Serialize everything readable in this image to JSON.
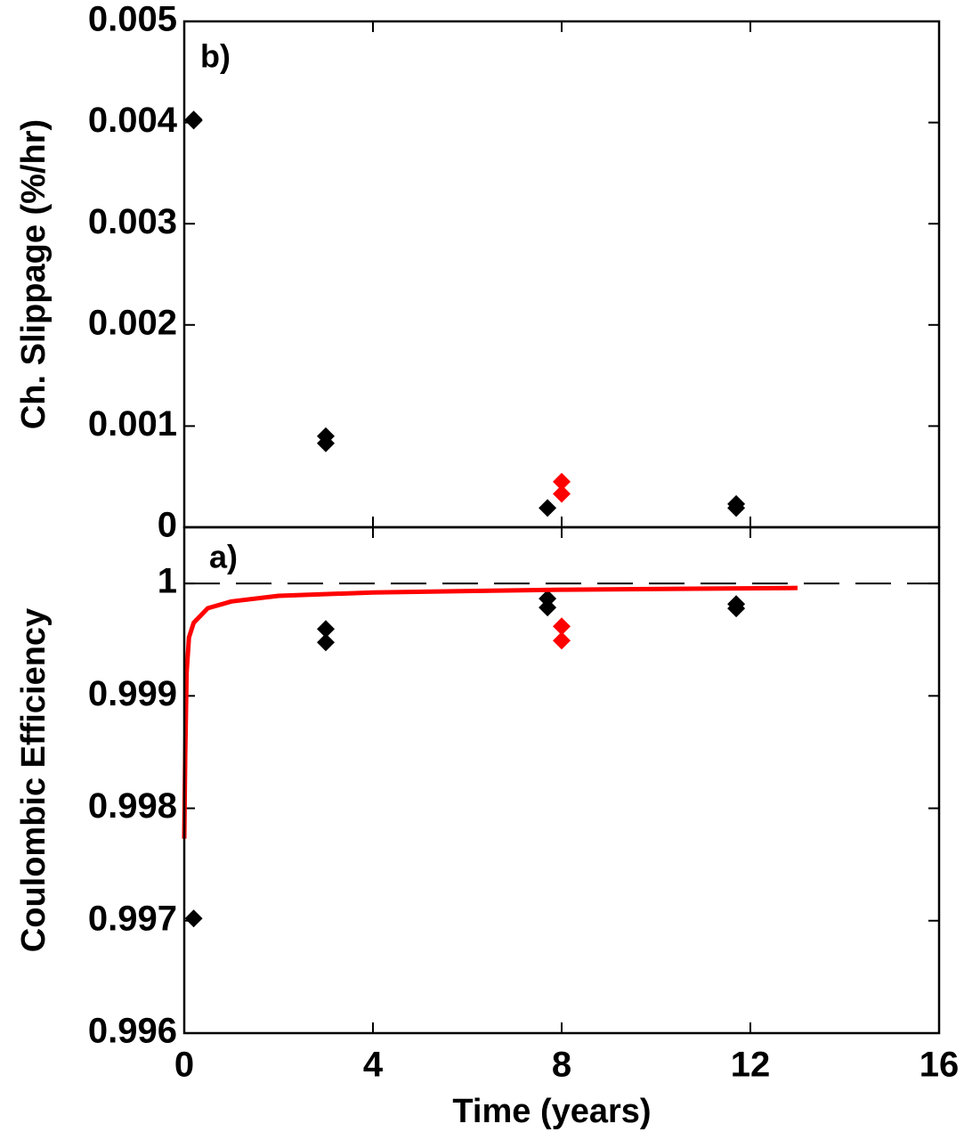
{
  "chart_data": [
    {
      "type": "scatter",
      "panel_label": "b)",
      "y_label": "Ch. Slippage (%/hr)",
      "xlim": [
        0,
        16
      ],
      "ylim": [
        0,
        0.005
      ],
      "yticks": [
        0,
        0.001,
        0.002,
        0.003,
        0.004,
        0.005
      ],
      "series": [
        {
          "color": "#000000",
          "x": [
            0.2,
            0.2,
            3,
            3,
            7.7,
            11.7,
            11.7
          ],
          "values": [
            0.00403,
            0.00402,
            0.0009,
            0.00083,
            0.00019,
            0.00023,
            0.00019
          ]
        },
        {
          "color": "#ff0000",
          "x": [
            8,
            8
          ],
          "values": [
            0.00045,
            0.00033
          ]
        }
      ]
    },
    {
      "type": "scatter",
      "panel_label": "a)",
      "y_label": "Coulombic Efficiency",
      "x_label": "Time (years)",
      "xlim": [
        0,
        16
      ],
      "xticks": [
        0,
        4,
        8,
        12,
        16
      ],
      "ylim": [
        0.996,
        1.0005
      ],
      "yticks": [
        0.996,
        0.997,
        0.998,
        0.999,
        1
      ],
      "reference_line": 1,
      "series": [
        {
          "color": "#000000",
          "x": [
            0.2,
            3,
            3,
            7.7,
            7.7,
            11.7,
            11.7
          ],
          "values": [
            0.99702,
            0.999595,
            0.999476,
            0.999865,
            0.999786,
            0.999817,
            0.999778
          ]
        },
        {
          "color": "#ff0000",
          "x": [
            8,
            8
          ],
          "values": [
            0.999619,
            0.999492
          ]
        },
        {
          "type": "line",
          "color": "#ff0000",
          "x": [
            0,
            0.02,
            0.05,
            0.1,
            0.2,
            0.5,
            1,
            2,
            4,
            8,
            13
          ],
          "values": [
            0.99773,
            0.99846,
            0.99921,
            0.99952,
            0.99965,
            0.99978,
            0.99984,
            0.99989,
            0.99992,
            0.999944,
            0.99996
          ]
        }
      ]
    }
  ]
}
